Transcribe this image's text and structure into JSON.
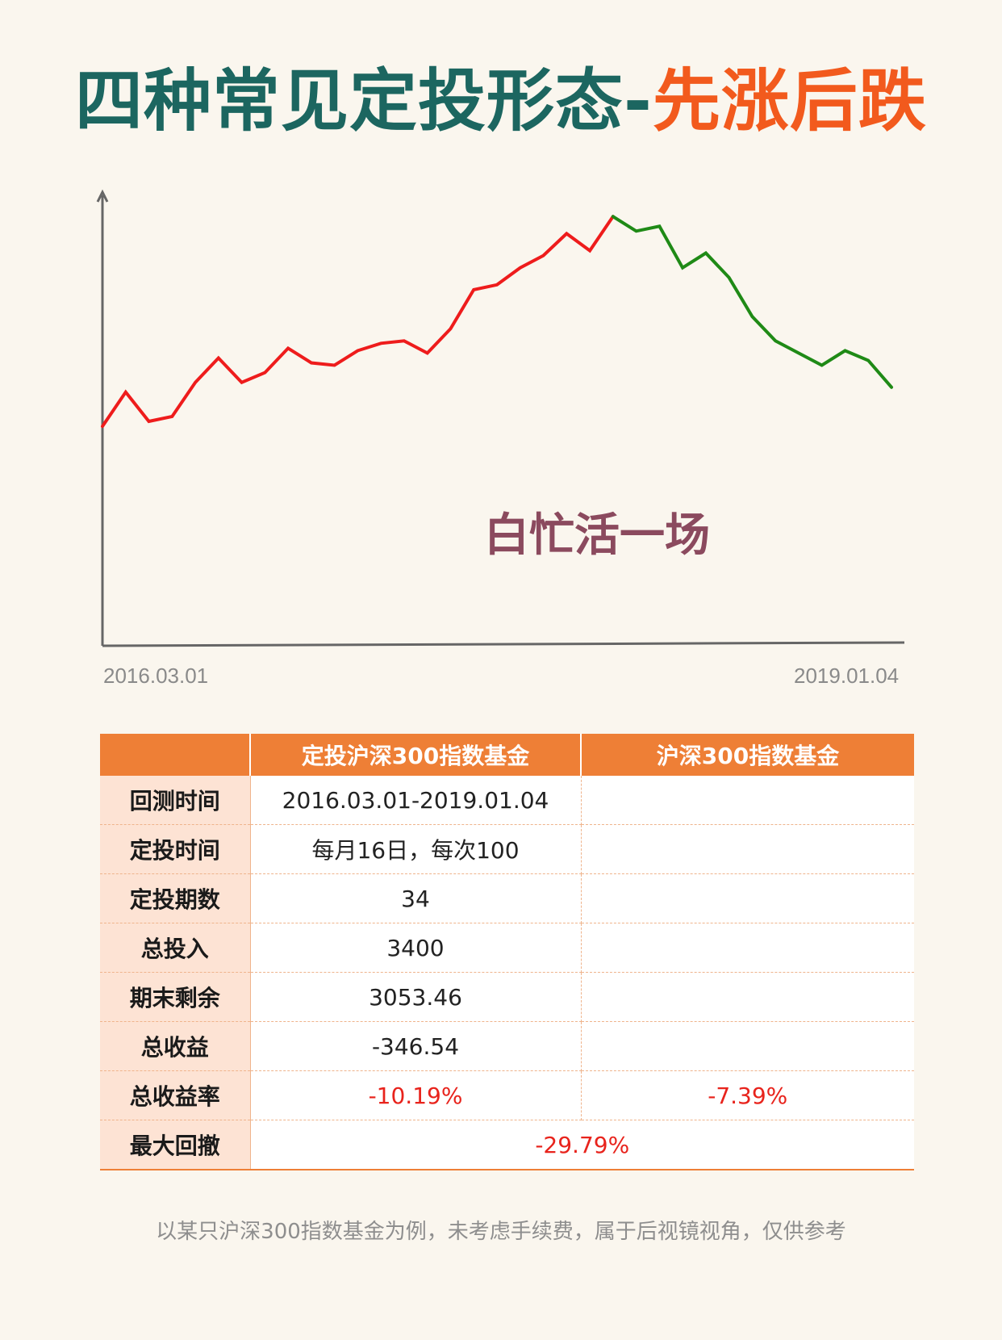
{
  "title": {
    "part1": "四种常见定投形态-",
    "part2": "先涨后跌"
  },
  "colors": {
    "title_main": "#1c6660",
    "title_accent": "#f25a1d",
    "rise": "#ee1c1c",
    "fall": "#1f8a16",
    "axis": "#666666",
    "header_bg": "#ee7f36",
    "rowhead_bg": "#fde3d4",
    "negative": "#e8231c"
  },
  "chart_data": {
    "type": "line",
    "x_labels": {
      "start": "2016.03.01",
      "end": "2019.01.04"
    },
    "annotation": "白忙活一场",
    "series": [
      {
        "segment": "rise",
        "color": "#ee1c1c",
        "values": [
          30,
          44,
          32,
          34,
          48,
          58,
          48,
          52,
          62,
          56,
          55,
          61,
          64,
          65,
          60,
          70,
          86,
          88,
          95,
          100,
          109,
          102,
          116
        ]
      },
      {
        "segment": "fall",
        "color": "#1f8a16",
        "values": [
          116,
          110,
          112,
          95,
          101,
          91,
          75,
          65,
          60,
          55,
          61,
          57,
          46
        ]
      }
    ],
    "ylim": [
      -60,
      126
    ],
    "grid": false
  },
  "table": {
    "headers": [
      "",
      "定投沪深300指数基金",
      "沪深300指数基金"
    ],
    "rows": [
      {
        "label": "回测时间",
        "col1": "2016.03.01-2019.01.04",
        "col2": ""
      },
      {
        "label": "定投时间",
        "col1": "每月16日，每次100",
        "col2": ""
      },
      {
        "label": "定投期数",
        "col1": "34",
        "col2": ""
      },
      {
        "label": "总投入",
        "col1": "3400",
        "col2": ""
      },
      {
        "label": "期末剩余",
        "col1": "3053.46",
        "col2": ""
      },
      {
        "label": "总收益",
        "col1": "-346.54",
        "col2": ""
      },
      {
        "label": "总收益率",
        "col1": "-10.19%",
        "col2": "-7.39%"
      },
      {
        "label": "最大回撤",
        "merged": "-29.79%"
      }
    ]
  },
  "footnote": "以某只沪深300指数基金为例，未考虑手续费，属于后视镜视角，仅供参考"
}
